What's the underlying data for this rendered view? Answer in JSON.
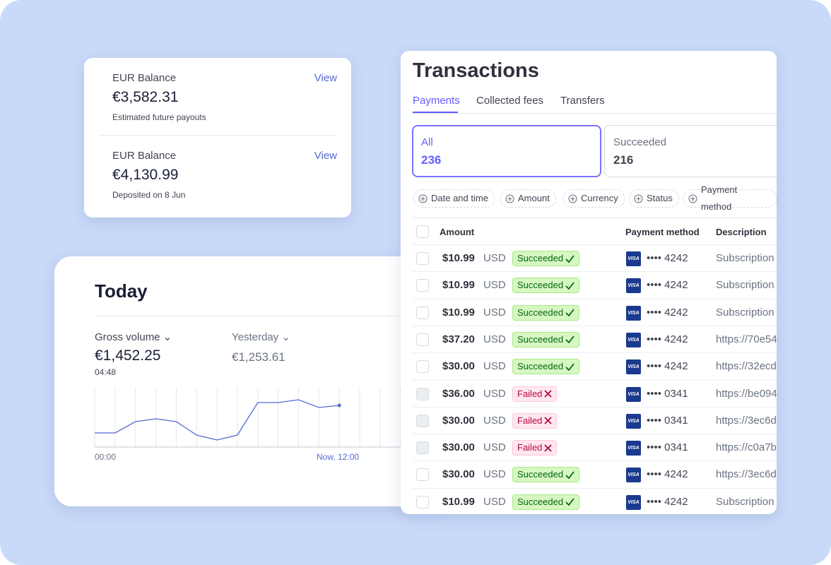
{
  "balances": [
    {
      "label": "EUR Balance",
      "amount": "€3,582.31",
      "note": "Estimated future payouts",
      "action": "View"
    },
    {
      "label": "EUR Balance",
      "amount": "€4,130.99",
      "note": "Deposited on 8 Jun",
      "action": "View"
    }
  ],
  "today": {
    "title": "Today",
    "gross_label": "Gross volume",
    "gross_value": "€1,452.25",
    "gross_time": "04:48",
    "compare_label": "Yesterday",
    "compare_value": "€1,253.61",
    "axis_start": "00:00",
    "axis_end": "Now, 12:00",
    "sparkline": [
      20,
      20,
      36,
      40,
      36,
      17,
      10,
      17,
      63,
      63,
      67,
      56,
      59
    ]
  },
  "transactions": {
    "title": "Transactions",
    "tabs": [
      "Payments",
      "Collected fees",
      "Transfers"
    ],
    "filter_cards": [
      {
        "label": "All",
        "count": "236"
      },
      {
        "label": "Succeeded",
        "count": "216"
      }
    ],
    "chips": [
      "Date and time",
      "Amount",
      "Currency",
      "Status",
      "Payment method"
    ],
    "columns": [
      "Amount",
      "Payment method",
      "Description"
    ],
    "card_brand": "VISA",
    "rows": [
      {
        "amount": "$10.99",
        "currency": "USD",
        "status": "Succeeded",
        "card": "•••• 4242",
        "description": "Subscription"
      },
      {
        "amount": "$10.99",
        "currency": "USD",
        "status": "Succeeded",
        "card": "•••• 4242",
        "description": "Subscription"
      },
      {
        "amount": "$10.99",
        "currency": "USD",
        "status": "Succeeded",
        "card": "•••• 4242",
        "description": "Subscription"
      },
      {
        "amount": "$37.20",
        "currency": "USD",
        "status": "Succeeded",
        "card": "•••• 4242",
        "description": "https://70e54"
      },
      {
        "amount": "$30.00",
        "currency": "USD",
        "status": "Succeeded",
        "card": "•••• 4242",
        "description": "https://32ecd"
      },
      {
        "amount": "$36.00",
        "currency": "USD",
        "status": "Failed",
        "card": "•••• 0341",
        "description": "https://be094"
      },
      {
        "amount": "$30.00",
        "currency": "USD",
        "status": "Failed",
        "card": "•••• 0341",
        "description": "https://3ec6d"
      },
      {
        "amount": "$30.00",
        "currency": "USD",
        "status": "Failed",
        "card": "•••• 0341",
        "description": "https://c0a7b"
      },
      {
        "amount": "$30.00",
        "currency": "USD",
        "status": "Succeeded",
        "card": "•••• 4242",
        "description": "https://3ec6d"
      },
      {
        "amount": "$10.99",
        "currency": "USD",
        "status": "Succeeded",
        "card": "•••• 4242",
        "description": "Subscription"
      }
    ]
  }
}
